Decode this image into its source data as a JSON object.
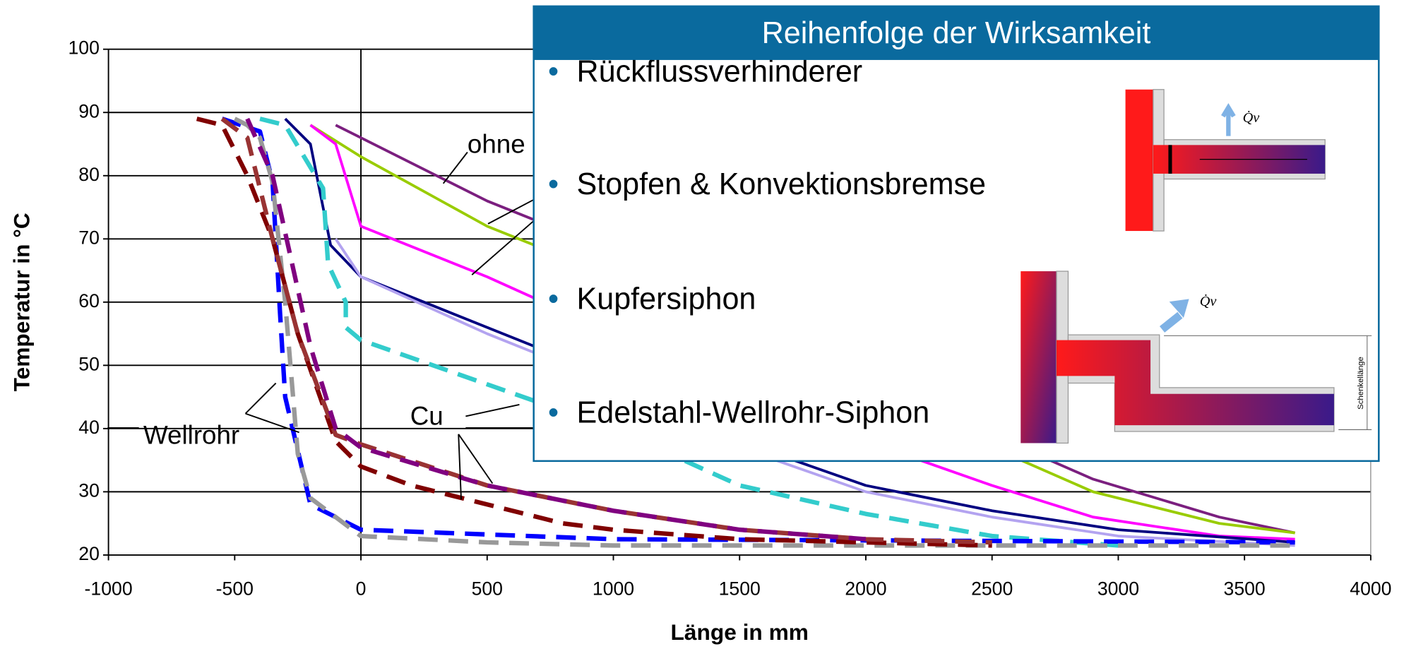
{
  "chart_data": {
    "type": "line",
    "xlabel": "Länge in mm",
    "ylabel": "Temperatur in °C",
    "xlim": [
      -1000,
      4000
    ],
    "ylim": [
      20,
      100
    ],
    "xticks": [
      -1000,
      -500,
      0,
      500,
      1000,
      1500,
      2000,
      2500,
      3000,
      3500,
      4000
    ],
    "yticks": [
      20,
      30,
      40,
      50,
      60,
      70,
      80,
      90,
      100
    ],
    "grid": true,
    "annotations": [
      "ohne",
      "Cu",
      "Wellrohr"
    ],
    "series": [
      {
        "color": "#7b1f7f",
        "style": "solid",
        "x": [
          -100,
          0,
          300,
          500,
          1000,
          1500,
          2000,
          2500,
          2900,
          3400,
          3700
        ],
        "values": [
          88,
          86,
          80,
          76,
          68,
          58,
          48,
          39,
          32,
          26,
          23.5
        ]
      },
      {
        "color": "#99cc00",
        "style": "solid",
        "x": [
          -200,
          0,
          500,
          1000,
          1500,
          2000,
          2500,
          2900,
          3400,
          3700
        ],
        "values": [
          88,
          83,
          72,
          64,
          54,
          45,
          37,
          30,
          25,
          23.5
        ]
      },
      {
        "color": "#ff00ff",
        "style": "solid",
        "x": [
          -200,
          -100,
          0,
          500,
          1000,
          1500,
          2000,
          2500,
          2900,
          3400,
          3700
        ],
        "values": [
          88,
          85,
          72,
          64,
          55,
          46,
          38,
          31,
          26,
          23,
          22.5
        ]
      },
      {
        "color": "#000080",
        "style": "solid",
        "x": [
          -300,
          -200,
          -120,
          0,
          500,
          1000,
          1500,
          2000,
          2500,
          3000,
          3700
        ],
        "values": [
          89,
          85,
          69,
          64,
          56,
          48,
          38,
          31,
          27,
          24,
          22
        ]
      },
      {
        "color": "#b3a3f0",
        "style": "solid",
        "x": [
          -100,
          0,
          500,
          1000,
          1500,
          2000,
          2500,
          3000,
          3700
        ],
        "values": [
          70,
          64,
          55,
          47,
          37,
          30,
          26,
          23,
          21.5
        ]
      },
      {
        "color": "#33cccc",
        "style": "dashed",
        "x": [
          -400,
          -300,
          -150,
          -130,
          -60,
          -60,
          0,
          500,
          1000,
          1500,
          2000,
          2500,
          3000
        ],
        "values": [
          89,
          88,
          78,
          66,
          60,
          56,
          54,
          47,
          40,
          31,
          26.5,
          23,
          21.5
        ]
      },
      {
        "color": "#0000ff",
        "style": "dashed",
        "x": [
          -550,
          -400,
          -350,
          -320,
          -300,
          -200,
          0,
          1000,
          3700
        ],
        "values": [
          89,
          87,
          79,
          58,
          45,
          28,
          24,
          22.5,
          22
        ]
      },
      {
        "color": "#999999",
        "style": "dashed",
        "x": [
          -500,
          -450,
          -400,
          -350,
          -300,
          -250,
          -200,
          -100,
          0,
          500,
          1000,
          3700
        ],
        "values": [
          89,
          88,
          86,
          79,
          60,
          36,
          29,
          26,
          23,
          22,
          21.5,
          21.5
        ]
      },
      {
        "color": "#800000",
        "style": "dashed",
        "x": [
          -650,
          -550,
          -450,
          -350,
          -250,
          -100,
          0,
          200,
          500,
          800,
          1000,
          1500,
          2500
        ],
        "values": [
          89,
          88,
          80,
          70,
          55,
          38,
          34,
          31,
          28,
          25,
          24,
          22.5,
          21.5
        ]
      },
      {
        "color": "#993333",
        "style": "dashed",
        "x": [
          -550,
          -450,
          -350,
          -250,
          -100,
          0,
          500,
          1000,
          1500,
          2000,
          2500
        ],
        "values": [
          89,
          86,
          70,
          55,
          39,
          37.5,
          31,
          27,
          24,
          22.5,
          22
        ]
      },
      {
        "color": "#800080",
        "style": "dashed",
        "x": [
          -450,
          -350,
          -250,
          -200,
          -100,
          0,
          500,
          1000,
          1500,
          2000
        ],
        "values": [
          89,
          80,
          62,
          53,
          40,
          37,
          31,
          27,
          24,
          22.5
        ]
      }
    ]
  },
  "overlay": {
    "title": "Reihenfolge der Wirksamkeit",
    "items": [
      "Rückflussverhinderer",
      "Stopfen & Konvektionsbremse",
      "Kupfersiphon",
      "Edelstahl-Wellrohr-Siphon"
    ],
    "diagram_labels": [
      "Q̇v",
      "Q̇v",
      "Schenkellänge"
    ]
  }
}
